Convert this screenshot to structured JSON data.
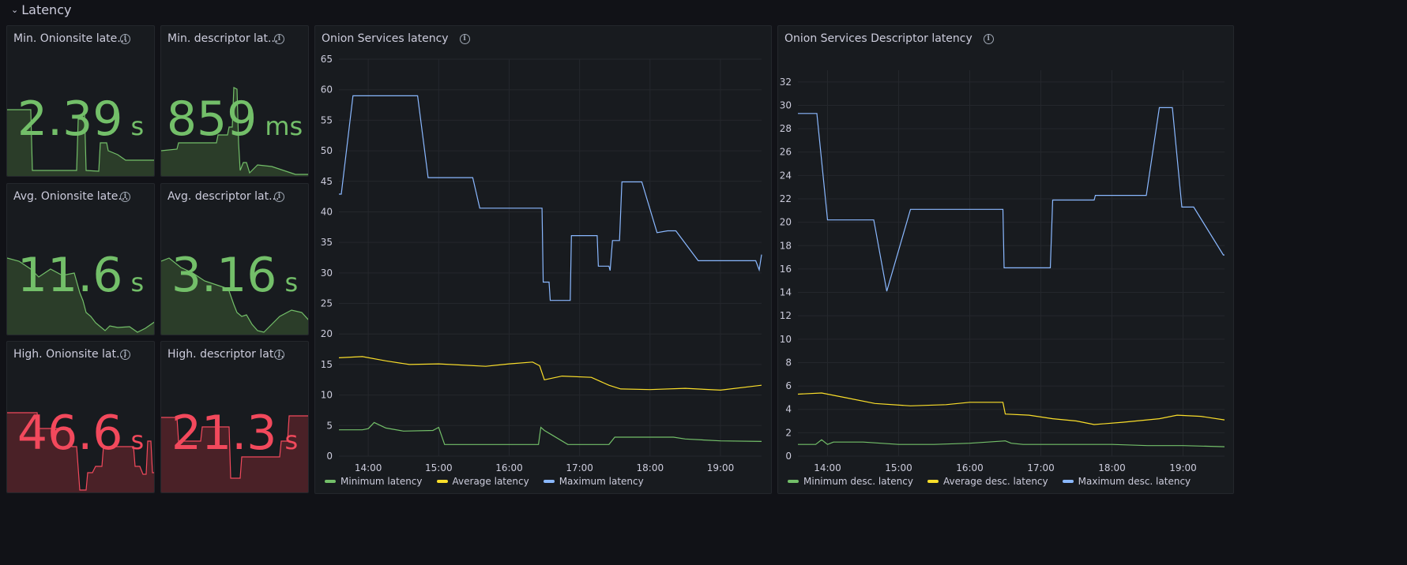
{
  "row": {
    "title": "Latency"
  },
  "stats": [
    {
      "title": "Min. Onionsite late...",
      "value": "2.39",
      "unit": "s",
      "color": "#73bf69",
      "fill": "#2b3d29"
    },
    {
      "title": "Min. descriptor lat...",
      "value": "859",
      "unit": "ms",
      "color": "#73bf69",
      "fill": "#2b3d29"
    },
    {
      "title": "Avg. Onionsite late...",
      "value": "11.6",
      "unit": "s",
      "color": "#73bf69",
      "fill": "#2b3d29"
    },
    {
      "title": "Avg. descriptor lat...",
      "value": "3.16",
      "unit": "s",
      "color": "#73bf69",
      "fill": "#2b3d29"
    },
    {
      "title": "High. Onionsite lat...",
      "value": "46.6",
      "unit": "s",
      "color": "#f2495c",
      "fill": "#4a2127"
    },
    {
      "title": "High. descriptor lat...",
      "value": "21.3",
      "unit": "s",
      "color": "#f2495c",
      "fill": "#4a2127"
    }
  ],
  "charts": [
    {
      "title": "Onion Services latency",
      "legend": [
        "Minimum latency",
        "Average latency",
        "Maximum latency"
      ],
      "colors": [
        "#73bf69",
        "#fade2a",
        "#8ab8ff"
      ]
    },
    {
      "title": "Onion Services Descriptor latency",
      "legend": [
        "Minimum desc. latency",
        "Average desc. latency",
        "Maximum desc. latency"
      ],
      "colors": [
        "#73bf69",
        "#fade2a",
        "#8ab8ff"
      ]
    }
  ],
  "chart_data": [
    {
      "type": "line",
      "title": "Onion Services latency",
      "x_ticks": [
        "14:00",
        "15:00",
        "16:00",
        "17:00",
        "18:00",
        "19:00"
      ],
      "x_range": [
        "13:35",
        "19:35"
      ],
      "y_ticks": [
        0,
        5,
        10,
        15,
        20,
        25,
        30,
        35,
        40,
        45,
        50,
        55,
        60,
        65
      ],
      "ylim": [
        0,
        65
      ],
      "series": [
        {
          "name": "Minimum latency",
          "x": [
            "13:35",
            "13:55",
            "14:00",
            "14:05",
            "14:15",
            "14:30",
            "14:55",
            "15:00",
            "15:05",
            "16:25",
            "16:27",
            "16:30",
            "16:37",
            "16:50",
            "17:20",
            "17:25",
            "17:30",
            "17:45",
            "18:20",
            "18:30",
            "19:00",
            "19:35"
          ],
          "values": [
            4.3,
            4.3,
            4.5,
            5.5,
            4.6,
            4.1,
            4.2,
            4.7,
            1.9,
            1.9,
            4.7,
            4.2,
            3.4,
            1.9,
            1.9,
            1.9,
            3.1,
            3.1,
            3.1,
            2.8,
            2.5,
            2.4
          ]
        },
        {
          "name": "Average latency",
          "x": [
            "13:35",
            "13:55",
            "14:15",
            "14:35",
            "15:00",
            "15:40",
            "16:00",
            "16:20",
            "16:26",
            "16:30",
            "16:45",
            "17:10",
            "17:25",
            "17:35",
            "18:00",
            "18:30",
            "19:00",
            "19:35"
          ],
          "values": [
            16.1,
            16.3,
            15.6,
            15.0,
            15.1,
            14.7,
            15.1,
            15.4,
            14.8,
            12.5,
            13.1,
            12.9,
            11.6,
            11.0,
            10.9,
            11.1,
            10.8,
            11.6
          ]
        },
        {
          "name": "Maximum latency",
          "x": [
            "13:35",
            "13:37",
            "13:47",
            "14:42",
            "14:51",
            "15:29",
            "15:35",
            "16:28",
            "16:29",
            "16:34",
            "16:35",
            "16:52",
            "16:53",
            "17:15",
            "17:16",
            "17:25",
            "17:26",
            "17:28",
            "17:34",
            "17:36",
            "17:53",
            "18:06",
            "18:15",
            "18:16",
            "18:17",
            "18:22",
            "18:41",
            "18:49",
            "19:30",
            "19:33",
            "19:35"
          ],
          "values": [
            42.9,
            42.9,
            59,
            59,
            45.6,
            45.6,
            40.6,
            40.6,
            28.5,
            28.5,
            25.5,
            25.5,
            36.1,
            36.1,
            31.1,
            31.1,
            30.4,
            35.3,
            35.3,
            44.9,
            44.9,
            36.6,
            36.9,
            36.9,
            36.9,
            36.9,
            32.0,
            32.0,
            32.0,
            30.5,
            33.0
          ]
        }
      ]
    },
    {
      "type": "line",
      "title": "Onion Services Descriptor latency",
      "x_ticks": [
        "14:00",
        "15:00",
        "16:00",
        "17:00",
        "18:00",
        "19:00"
      ],
      "x_range": [
        "13:35",
        "19:35"
      ],
      "y_ticks": [
        0,
        2,
        4,
        6,
        8,
        10,
        12,
        14,
        16,
        18,
        20,
        22,
        24,
        26,
        28,
        30,
        32
      ],
      "ylim": [
        0,
        33
      ],
      "series": [
        {
          "name": "Minimum desc. latency",
          "x": [
            "13:35",
            "13:50",
            "13:55",
            "14:00",
            "14:05",
            "14:30",
            "15:00",
            "15:30",
            "16:00",
            "16:30",
            "16:35",
            "16:45",
            "17:00",
            "17:30",
            "18:00",
            "18:30",
            "19:00",
            "19:35"
          ],
          "values": [
            1.0,
            1.0,
            1.4,
            1.0,
            1.2,
            1.2,
            1.0,
            1.0,
            1.1,
            1.3,
            1.1,
            1.0,
            1.0,
            1.0,
            1.0,
            0.9,
            0.9,
            0.8
          ]
        },
        {
          "name": "Average desc. latency",
          "x": [
            "13:35",
            "13:55",
            "14:15",
            "14:40",
            "15:10",
            "15:40",
            "16:00",
            "16:28",
            "16:30",
            "16:50",
            "17:10",
            "17:30",
            "17:45",
            "18:10",
            "18:40",
            "18:55",
            "19:15",
            "19:35"
          ],
          "values": [
            5.3,
            5.4,
            5.0,
            4.5,
            4.3,
            4.4,
            4.6,
            4.6,
            3.6,
            3.5,
            3.2,
            3.0,
            2.7,
            2.9,
            3.2,
            3.5,
            3.4,
            3.1
          ]
        },
        {
          "name": "Maximum desc. latency",
          "x": [
            "13:35",
            "13:51",
            "14:00",
            "14:39",
            "14:50",
            "15:10",
            "16:28",
            "16:29",
            "17:08",
            "17:10",
            "17:45",
            "17:46",
            "18:29",
            "18:40",
            "18:51",
            "18:59",
            "19:09",
            "19:34",
            "19:35"
          ],
          "values": [
            29.3,
            29.3,
            20.2,
            20.2,
            14.1,
            21.1,
            21.1,
            16.1,
            16.1,
            21.9,
            21.9,
            22.3,
            22.3,
            29.8,
            29.8,
            21.3,
            21.3,
            17.2,
            17.2
          ]
        }
      ]
    }
  ]
}
